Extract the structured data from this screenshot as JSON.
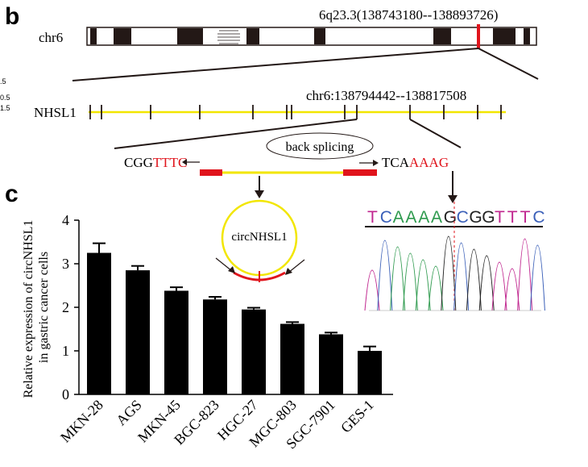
{
  "panel_b": {
    "letter": "b",
    "chrom_label": "chr6",
    "band_label": "6q23.3(138743180--138893726)",
    "gene_label": "NHSL1",
    "gene_coords": "chr6:138794442--138817508",
    "side_ticks": [
      ".5",
      "0.5",
      "1.5"
    ],
    "back_splicing_label": "back splicing",
    "left_seq_black": "CGG",
    "left_seq_red": "TTTC",
    "right_seq_black": "TCA",
    "right_seq_red": "AAAG",
    "circ_label": "circNHSL1",
    "junction_letters": [
      {
        "char": "T",
        "color": "#c0268f"
      },
      {
        "char": "C",
        "color": "#3a5fb8"
      },
      {
        "char": "A",
        "color": "#2e9a4e"
      },
      {
        "char": "A",
        "color": "#2e9a4e"
      },
      {
        "char": "A",
        "color": "#2e9a4e"
      },
      {
        "char": "A",
        "color": "#2e9a4e"
      },
      {
        "char": "G",
        "color": "#222222"
      },
      {
        "char": "C",
        "color": "#3a5fb8"
      },
      {
        "char": "G",
        "color": "#222222"
      },
      {
        "char": "G",
        "color": "#222222"
      },
      {
        "char": "T",
        "color": "#c0268f"
      },
      {
        "char": "T",
        "color": "#c0268f"
      },
      {
        "char": "T",
        "color": "#c0268f"
      },
      {
        "char": "C",
        "color": "#3a5fb8"
      }
    ],
    "colors": {
      "exon_line": "#f2e600",
      "red": "#e0141c",
      "chrom_band": "#231816"
    }
  },
  "panel_c": {
    "letter": "c",
    "chart_data": {
      "type": "bar",
      "categories": [
        "MKN-28",
        "AGS",
        "MKN-45",
        "BGC-823",
        "HGC-27",
        "MGC-803",
        "SGC-7901",
        "GES-1"
      ],
      "values": [
        3.25,
        2.85,
        2.38,
        2.18,
        1.95,
        1.62,
        1.38,
        1.0
      ],
      "errors": [
        0.22,
        0.1,
        0.08,
        0.06,
        0.04,
        0.04,
        0.04,
        0.1
      ],
      "ylabel_line1": "Relative expression of circNHSL1",
      "ylabel_line2": "in gastric cancer cells",
      "ylim": [
        0,
        4
      ],
      "yticks": [
        "0",
        "1",
        "2",
        "3",
        "4"
      ],
      "color": "#000000"
    }
  }
}
